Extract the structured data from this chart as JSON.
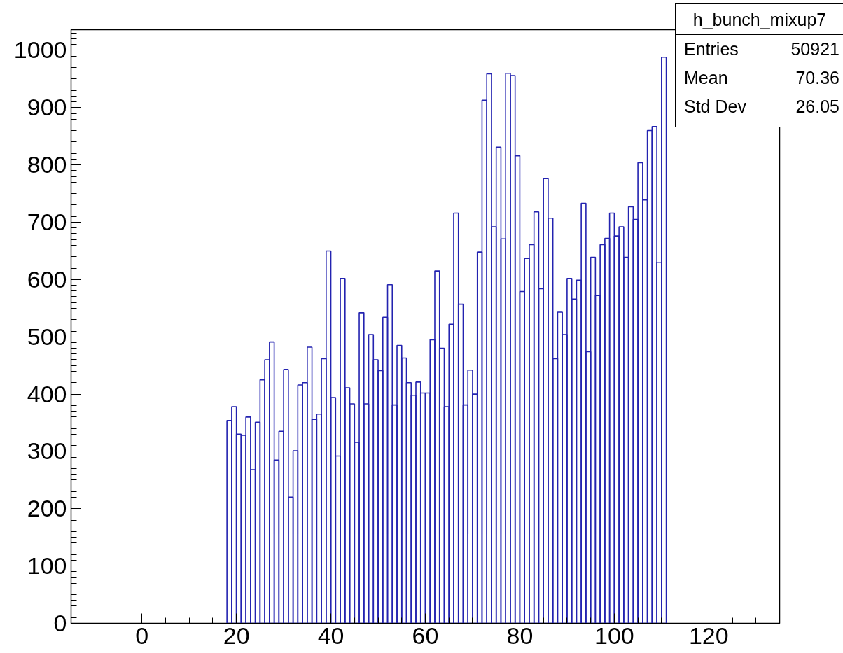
{
  "chart_data": {
    "type": "histogram",
    "title": "h_bunch_mixup7",
    "color": "#2323b0",
    "bins": [
      18,
      19,
      20,
      21,
      22,
      23,
      24,
      25,
      26,
      27,
      28,
      29,
      30,
      31,
      32,
      33,
      34,
      35,
      36,
      37,
      38,
      39,
      40,
      41,
      42,
      43,
      44,
      45,
      46,
      47,
      48,
      49,
      50,
      51,
      52,
      53,
      54,
      55,
      56,
      57,
      58,
      59,
      60,
      61,
      62,
      63,
      64,
      65,
      66,
      67,
      68,
      69,
      70,
      71,
      72,
      73,
      74,
      75,
      76,
      77,
      78,
      79,
      80,
      81,
      82,
      83,
      84,
      85,
      86,
      87,
      88,
      89,
      90,
      91,
      92,
      93,
      94,
      95,
      96,
      97,
      98,
      99,
      100,
      101,
      102,
      103,
      104,
      105,
      106,
      107,
      108,
      109,
      110,
      111
    ],
    "values": [
      354,
      378,
      330,
      328,
      360,
      268,
      351,
      425,
      460,
      491,
      285,
      335,
      443,
      220,
      301,
      416,
      420,
      482,
      356,
      365,
      462,
      650,
      394,
      292,
      602,
      411,
      383,
      316,
      542,
      383,
      504,
      460,
      441,
      534,
      591,
      381,
      485,
      463,
      420,
      398,
      421,
      402,
      402,
      495,
      615,
      480,
      378,
      522,
      716,
      557,
      381,
      442,
      400,
      648,
      913,
      959,
      692,
      831,
      671,
      960,
      956,
      816,
      579,
      637,
      661,
      718,
      584,
      776,
      707,
      462,
      543,
      504,
      602,
      566,
      599,
      733,
      474,
      639,
      572,
      661,
      672,
      716,
      676,
      692,
      639,
      727,
      705,
      804,
      739,
      860,
      867,
      630,
      988
    ],
    "xlim": [
      -15,
      135
    ],
    "ylim": [
      0,
      1036
    ],
    "xticks": [
      0,
      20,
      40,
      60,
      80,
      100,
      120
    ],
    "yticks": [
      0,
      100,
      200,
      300,
      400,
      500,
      600,
      700,
      800,
      900,
      1000
    ],
    "grid": false,
    "annotations": [
      "Entries",
      "50921",
      "Mean",
      "70.36",
      "Std Dev",
      "26.05"
    ]
  }
}
